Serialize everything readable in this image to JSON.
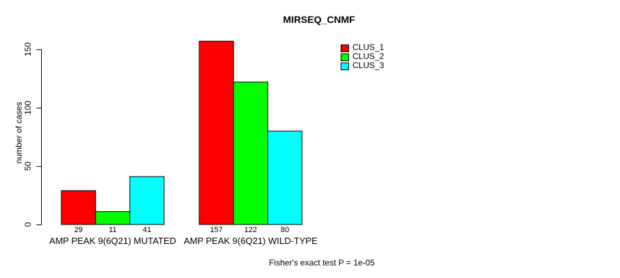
{
  "chart_data": {
    "type": "bar",
    "title": "MIRSEQ_CNMF",
    "ylabel": "number of cases",
    "xlabel": "",
    "yticks": [
      0,
      50,
      100,
      150
    ],
    "ylim": [
      0,
      157
    ],
    "grid": false,
    "legend_position": "top-right",
    "categories": [
      "AMP PEAK 9(6Q21) MUTATED",
      "AMP PEAK 9(6Q21) WILD-TYPE"
    ],
    "series": [
      {
        "name": "CLUS_1",
        "color": "#FF0000",
        "values": [
          29,
          157
        ]
      },
      {
        "name": "CLUS_2",
        "color": "#00FF00",
        "values": [
          11,
          122
        ]
      },
      {
        "name": "CLUS_3",
        "color": "#00FFFF",
        "values": [
          41,
          80
        ]
      }
    ],
    "bar_value_labels_shown": true,
    "annotation": "Fisher's exact test P = 1e-05",
    "colors": {
      "axis": "#000000",
      "bar_border": "#000000",
      "text": "#000000",
      "background": "#FFFFFF"
    }
  }
}
